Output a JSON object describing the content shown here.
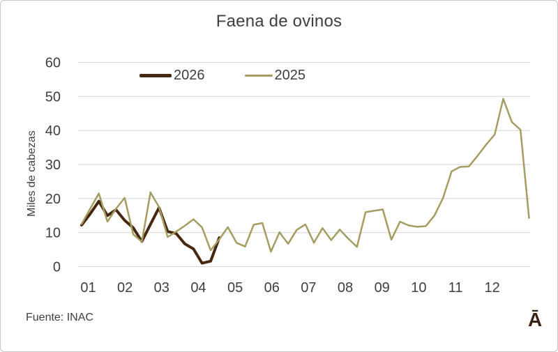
{
  "title": "Faena de ovinos",
  "source": "Fuente: INAC",
  "watermark": "Ā",
  "colors": {
    "series_2026": "#45280f",
    "series_2025": "#a49c60",
    "text": "#3f3f3f",
    "gridline": "#d9d9d9"
  },
  "legend": [
    {
      "label": "2026",
      "color": "#45280f"
    },
    {
      "label": "2025",
      "color": "#a49c60"
    }
  ],
  "chart_data": {
    "type": "line",
    "title": "Faena de ovinos",
    "ylabel": "Miles de cabezas",
    "xlabel": "",
    "x_unit": "weekly data points, x axis labeled by month 01-12",
    "x_labels": [
      "01",
      "02",
      "03",
      "04",
      "05",
      "06",
      "07",
      "08",
      "09",
      "10",
      "11",
      "12"
    ],
    "ylim": [
      0,
      60
    ],
    "yticks": [
      0,
      10,
      20,
      30,
      40,
      50,
      60
    ],
    "grid": "horizontal",
    "legend_position": "top-inside",
    "series": [
      {
        "name": "2026",
        "color": "#45280f",
        "values": [
          12.2,
          15.5,
          19.2,
          15.0,
          16.7,
          13.6,
          11.4,
          7.4,
          12.4,
          17.3,
          10.3,
          9.7,
          6.7,
          5.2,
          1.0,
          1.6,
          8.5
        ]
      },
      {
        "name": "2025",
        "color": "#a49c60",
        "values": [
          12.5,
          17.0,
          21.5,
          13.2,
          17.0,
          20.2,
          9.5,
          7.3,
          21.8,
          17.5,
          8.7,
          10.3,
          12.0,
          13.9,
          11.5,
          4.8,
          8.0,
          11.6,
          7.0,
          5.9,
          12.3,
          12.8,
          4.4,
          10.1,
          6.7,
          10.8,
          12.4,
          7.0,
          11.3,
          7.8,
          10.9,
          8.2,
          5.8,
          16.0,
          16.4,
          16.8,
          7.9,
          13.2,
          12.1,
          11.7,
          11.9,
          15.0,
          20.1,
          28.0,
          29.3,
          29.4,
          32.5,
          35.8,
          38.8,
          49.3,
          42.5,
          40.2,
          14.3
        ]
      }
    ]
  }
}
